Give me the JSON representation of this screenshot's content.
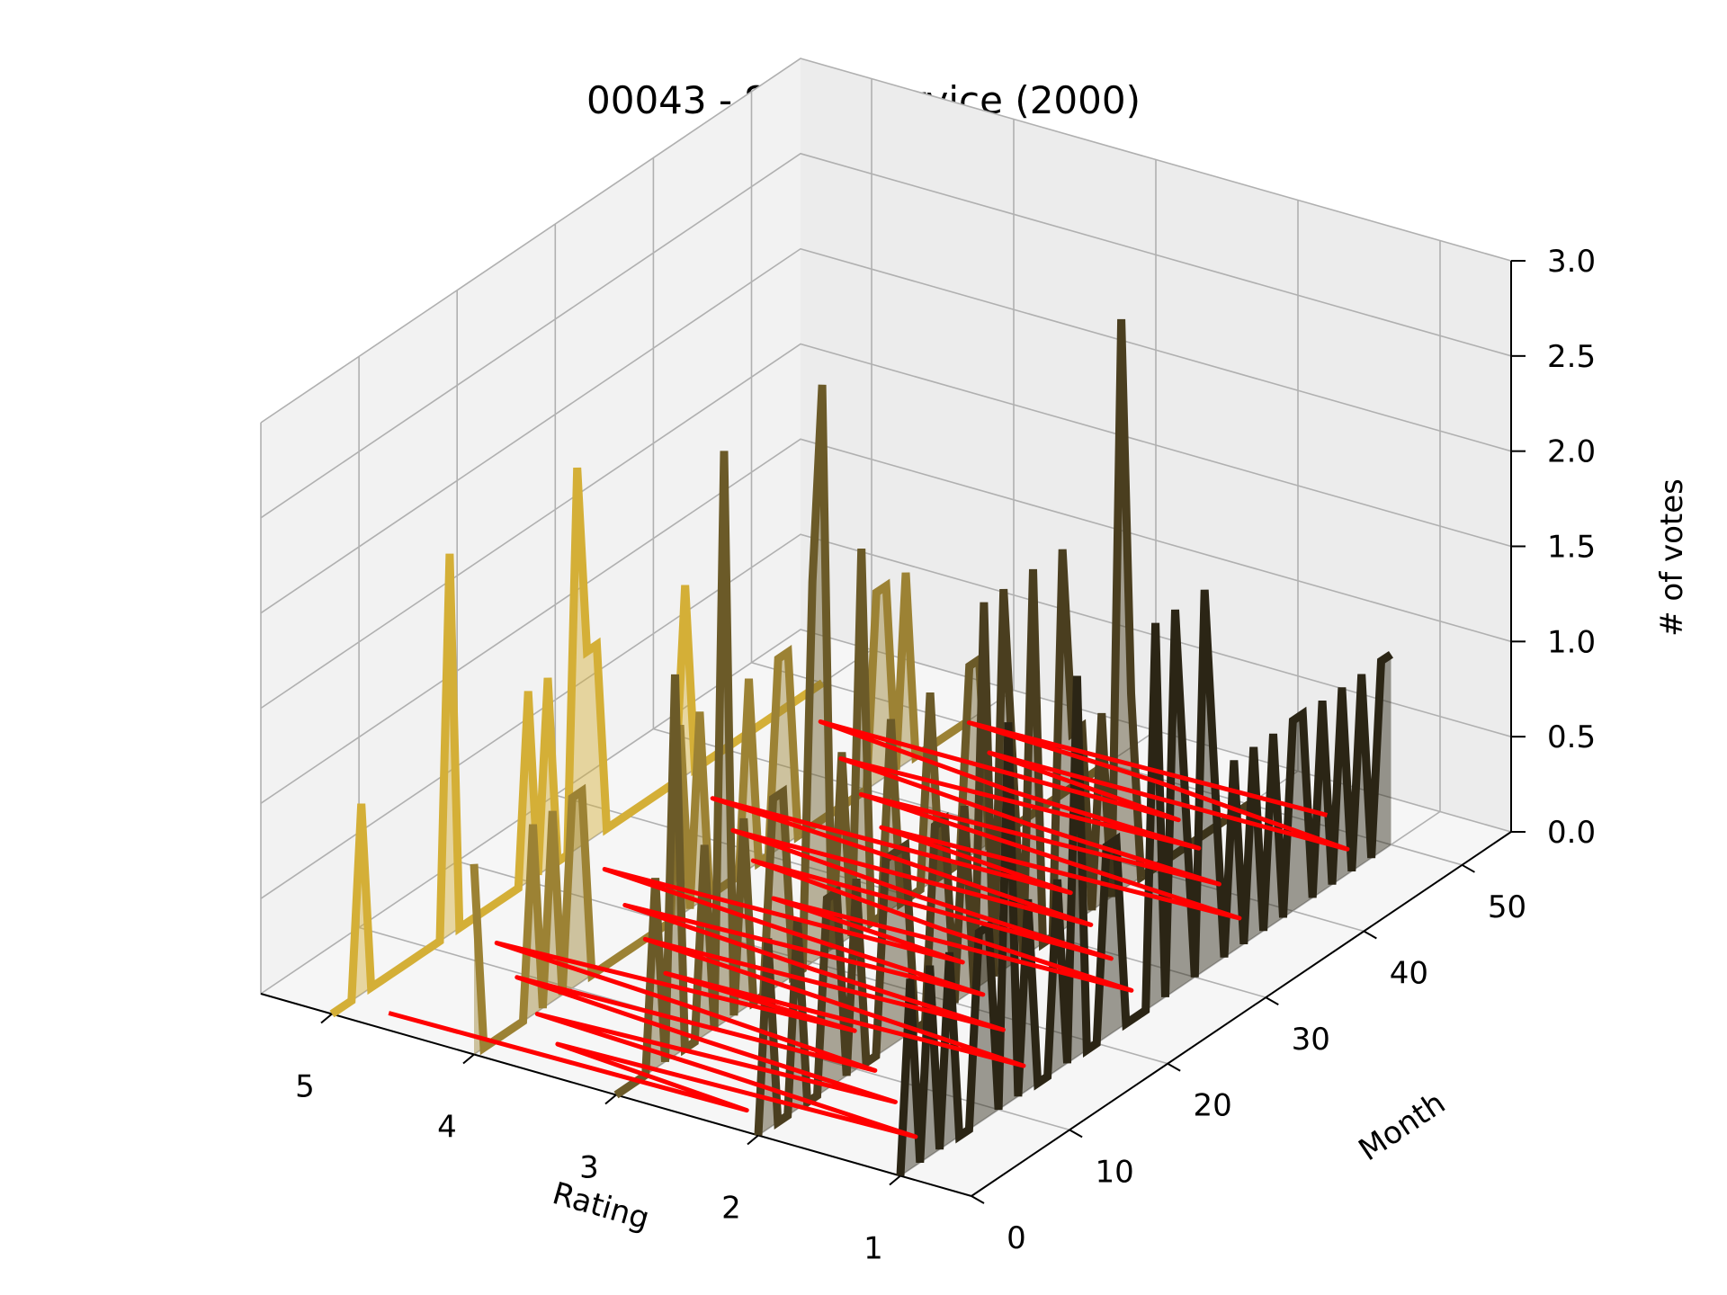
{
  "chart_data": {
    "type": "line",
    "view": "3d",
    "title": "00043 - Silent Service (2000)",
    "xlabel": "Rating",
    "ylabel": "Month",
    "zlabel": "# of votes",
    "xlim": [
      0.5,
      5.5
    ],
    "ylim": [
      0,
      55
    ],
    "zlim": [
      0,
      3
    ],
    "x_ticks": [
      "5",
      "4",
      "3",
      "2",
      "1"
    ],
    "y_ticks": [
      "0",
      "10",
      "20",
      "30",
      "40",
      "50"
    ],
    "z_ticks": [
      "0.0",
      "0.5",
      "1.0",
      "1.5",
      "2.0",
      "2.5",
      "3.0"
    ],
    "grid": true,
    "series": [
      {
        "rating": 5,
        "color": "#d4af37",
        "months": [
          0,
          1,
          2,
          3,
          4,
          5,
          6,
          7,
          8,
          9,
          10,
          11,
          12,
          13,
          14,
          15,
          16,
          17,
          18,
          19,
          20,
          21,
          22,
          23,
          24,
          25,
          26,
          27,
          28,
          29,
          30,
          31,
          32,
          33,
          34,
          35,
          36,
          37,
          38,
          39,
          40,
          41,
          42,
          43,
          44,
          45,
          46,
          47,
          48,
          49,
          50
        ],
        "values": [
          0,
          0,
          0,
          1,
          0,
          0,
          0,
          0,
          0,
          0,
          0,
          0,
          2,
          0,
          0,
          0,
          0,
          0,
          0,
          0,
          1,
          0,
          1,
          0,
          0,
          2,
          1,
          1,
          0,
          0,
          0,
          0,
          0,
          0,
          0,
          0,
          1,
          0,
          0,
          0,
          0,
          0,
          0,
          0,
          0,
          0,
          0,
          0,
          0,
          0,
          0
        ]
      },
      {
        "rating": 4,
        "color": "#9c8234",
        "months": [
          0,
          1,
          2,
          3,
          4,
          5,
          6,
          7,
          8,
          9,
          10,
          11,
          12,
          13,
          14,
          15,
          16,
          17,
          18,
          19,
          20,
          21,
          22,
          23,
          24,
          25,
          26,
          27,
          28,
          29,
          30,
          31,
          32,
          33,
          34,
          35,
          36,
          37,
          38,
          39,
          40,
          41,
          42,
          43,
          44,
          45,
          46,
          47,
          48,
          49,
          50
        ],
        "values": [
          1,
          0,
          0,
          0,
          0,
          0,
          1,
          0,
          1,
          0,
          1,
          1,
          0,
          0,
          0,
          0,
          0,
          0,
          0,
          0,
          0,
          1,
          0,
          1,
          0,
          0,
          0,
          0,
          1,
          0,
          0,
          1,
          1,
          0,
          0,
          0,
          0,
          0,
          0,
          0,
          0,
          1,
          1,
          0,
          1,
          0,
          0,
          0,
          0,
          0,
          0
        ]
      },
      {
        "rating": 3,
        "color": "#6b5a28",
        "months": [
          0,
          1,
          2,
          3,
          4,
          5,
          6,
          7,
          8,
          9,
          10,
          11,
          12,
          13,
          14,
          15,
          16,
          17,
          18,
          19,
          20,
          21,
          22,
          23,
          24,
          25,
          26,
          27,
          28,
          29,
          30,
          31,
          32,
          33,
          34,
          35,
          36,
          37,
          38,
          39,
          40,
          41,
          42,
          43,
          44,
          45,
          46,
          47,
          48,
          49,
          50
        ],
        "values": [
          0,
          0,
          0,
          0,
          1,
          0,
          2,
          0,
          0,
          1,
          0,
          3,
          0,
          1,
          0,
          0,
          1,
          1,
          0,
          0,
          2,
          3,
          0,
          1,
          0,
          2,
          0,
          0,
          1,
          0,
          0,
          0,
          1,
          0,
          0,
          0,
          1,
          1,
          0,
          0,
          0,
          0,
          0,
          0,
          0,
          0,
          0,
          0,
          0,
          0,
          0
        ]
      },
      {
        "rating": 2,
        "color": "#4a3e1f",
        "months": [
          0,
          1,
          2,
          3,
          4,
          5,
          6,
          7,
          8,
          9,
          10,
          11,
          12,
          13,
          14,
          15,
          16,
          17,
          18,
          19,
          20,
          21,
          22,
          23,
          24,
          25,
          26,
          27,
          28,
          29,
          30,
          31,
          32,
          33,
          34,
          35,
          36,
          37,
          38,
          39,
          40,
          41,
          42,
          43,
          44,
          45,
          46,
          47,
          48,
          49,
          50
        ],
        "values": [
          0,
          1,
          0,
          0,
          1,
          0,
          0,
          1,
          1,
          0,
          1,
          0,
          0,
          1,
          1,
          1,
          0,
          0,
          1,
          1,
          0,
          1,
          0,
          2,
          0,
          2,
          1,
          0,
          2,
          0,
          0,
          2,
          1,
          1,
          0,
          1,
          0,
          3,
          1,
          0,
          0,
          0,
          0,
          0,
          0,
          0,
          0,
          0,
          0,
          0,
          0
        ]
      },
      {
        "rating": 1,
        "color": "#2b2515",
        "months": [
          0,
          1,
          2,
          3,
          4,
          5,
          6,
          7,
          8,
          9,
          10,
          11,
          12,
          13,
          14,
          15,
          16,
          17,
          18,
          19,
          20,
          21,
          22,
          23,
          24,
          25,
          26,
          27,
          28,
          29,
          30,
          31,
          32,
          33,
          34,
          35,
          36,
          37,
          38,
          39,
          40,
          41,
          42,
          43,
          44,
          45,
          46,
          47,
          48,
          49,
          50
        ],
        "values": [
          0,
          1,
          0,
          1,
          0,
          1,
          0,
          0,
          1,
          1,
          0,
          2,
          0,
          1,
          0,
          0,
          1,
          0,
          2,
          0,
          0,
          1,
          1,
          0,
          0,
          0,
          2,
          0,
          2,
          1,
          0,
          2,
          1,
          0,
          1,
          0,
          1,
          0,
          1,
          0,
          1,
          1,
          0,
          1,
          0,
          1,
          0,
          1,
          0,
          1,
          1
        ]
      }
    ],
    "trend_color": "#ff0000"
  }
}
